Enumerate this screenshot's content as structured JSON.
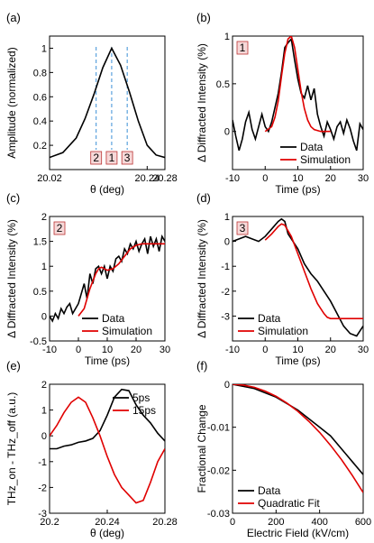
{
  "chart_data": [
    {
      "type": "line",
      "panel_label": "(a)",
      "xlabel": "θ (deg)",
      "ylabel": "Amplitude (normalized)",
      "xlim": [
        20.02,
        20.28
      ],
      "ylim": [
        0,
        1.1
      ],
      "xticks": [
        20.02,
        20.24,
        20.28
      ],
      "xtick_labels": [
        "20.02",
        "20.24",
        "20.28"
      ],
      "yticks": [
        0.2,
        0.4,
        0.6,
        0.8,
        1
      ],
      "ytick_labels": [
        "0.2",
        "0.4",
        "0.6",
        "0.8",
        "1"
      ],
      "series": [
        {
          "color": "#000000",
          "style": "solid",
          "x": [
            20.02,
            20.05,
            20.08,
            20.1,
            20.12,
            20.14,
            20.16,
            20.18,
            20.2,
            20.22,
            20.24,
            20.26,
            20.28
          ],
          "y": [
            0.1,
            0.14,
            0.26,
            0.42,
            0.62,
            0.84,
            1.0,
            0.86,
            0.64,
            0.4,
            0.2,
            0.12,
            0.1
          ]
        }
      ],
      "vlines": [
        {
          "x": 20.125,
          "label": "2"
        },
        {
          "x": 20.16,
          "label": "1"
        },
        {
          "x": 20.195,
          "label": "3"
        }
      ]
    },
    {
      "type": "line",
      "panel_label": "(b)",
      "inset_label": "1",
      "xlabel": "Time (ps)",
      "ylabel": "Δ Diffracted Intensity (%)",
      "xlim": [
        -10,
        30
      ],
      "ylim": [
        -0.4,
        1
      ],
      "xticks": [
        -10,
        0,
        10,
        20,
        30
      ],
      "yticks": [
        0,
        0.5,
        1
      ],
      "legend": [
        "Data",
        "Simulation"
      ],
      "legend_position": "bottom-right",
      "series": [
        {
          "name": "Data",
          "color": "#000000",
          "x": [
            -10,
            -9,
            -8,
            -7,
            -6,
            -5,
            -4,
            -3,
            -2,
            -1,
            0,
            1,
            2,
            3,
            4,
            5,
            6,
            7,
            8,
            9,
            10,
            11,
            12,
            13,
            14,
            15,
            16,
            17,
            18,
            19,
            20,
            21,
            22,
            23,
            24,
            25,
            26,
            27,
            28,
            29,
            30
          ],
          "y": [
            0.12,
            -0.05,
            -0.2,
            -0.08,
            0.1,
            0.2,
            0.02,
            -0.08,
            0.05,
            0.18,
            0.05,
            0.0,
            0.1,
            0.25,
            0.4,
            0.62,
            0.88,
            0.93,
            0.97,
            0.75,
            0.55,
            0.4,
            0.35,
            0.48,
            0.33,
            0.45,
            0.18,
            0.05,
            -0.05,
            0.1,
            0.02,
            -0.08,
            0.05,
            0.1,
            -0.02,
            0.12,
            0.03,
            -0.1,
            -0.2,
            0.08,
            0.02
          ]
        },
        {
          "name": "Simulation",
          "color": "#e00000",
          "x": [
            0,
            2,
            3,
            4,
            5,
            6,
            7,
            8,
            9,
            10,
            11,
            12,
            13,
            14,
            15,
            17,
            20
          ],
          "y": [
            0.0,
            0.05,
            0.15,
            0.32,
            0.58,
            0.82,
            0.97,
            1.0,
            0.88,
            0.65,
            0.42,
            0.24,
            0.12,
            0.05,
            0.02,
            0.0,
            0.0
          ]
        }
      ]
    },
    {
      "type": "line",
      "panel_label": "(c)",
      "inset_label": "2",
      "xlabel": "Time (ps)",
      "ylabel": "Δ Diffracted Intensity (%)",
      "xlim": [
        -10,
        30
      ],
      "ylim": [
        -0.5,
        2
      ],
      "xticks": [
        -10,
        0,
        10,
        20,
        30
      ],
      "yticks": [
        -0.5,
        0,
        0.5,
        1,
        1.5,
        2
      ],
      "legend": [
        "Data",
        "Simulation"
      ],
      "legend_position": "bottom-right",
      "series": [
        {
          "name": "Data",
          "color": "#000000",
          "x": [
            -10,
            -9,
            -8,
            -7,
            -6,
            -5,
            -4,
            -3,
            -2,
            -1,
            0,
            1,
            2,
            3,
            4,
            5,
            6,
            7,
            8,
            9,
            10,
            11,
            12,
            13,
            14,
            15,
            16,
            17,
            18,
            19,
            20,
            21,
            22,
            23,
            24,
            25,
            26,
            27,
            28,
            29,
            30
          ],
          "y": [
            0.0,
            -0.1,
            0.05,
            -0.05,
            0.15,
            0.05,
            0.18,
            0.25,
            0.05,
            0.15,
            0.25,
            0.45,
            0.65,
            0.35,
            0.85,
            0.65,
            0.95,
            1.0,
            0.85,
            1.0,
            0.75,
            1.0,
            0.9,
            1.15,
            1.2,
            1.1,
            1.35,
            1.25,
            1.45,
            1.35,
            1.5,
            1.3,
            1.45,
            1.55,
            1.25,
            1.6,
            1.4,
            1.55,
            1.3,
            1.6,
            1.5
          ]
        },
        {
          "name": "Simulation",
          "color": "#e00000",
          "x": [
            0,
            2,
            4,
            6,
            7,
            8,
            9,
            10,
            12,
            14,
            16,
            18,
            20,
            22,
            24,
            26,
            28,
            30
          ],
          "y": [
            0.0,
            0.15,
            0.55,
            0.85,
            0.95,
            0.98,
            0.95,
            0.92,
            0.95,
            1.05,
            1.2,
            1.35,
            1.42,
            1.45,
            1.45,
            1.45,
            1.45,
            1.45
          ]
        }
      ]
    },
    {
      "type": "line",
      "panel_label": "(d)",
      "inset_label": "3",
      "xlabel": "Time (ps)",
      "ylabel": "Δ Diffracted Intensity (%)",
      "xlim": [
        -10,
        30
      ],
      "ylim": [
        -4,
        1
      ],
      "xticks": [
        -10,
        0,
        10,
        20,
        30
      ],
      "yticks": [
        -3,
        -2,
        -1,
        0,
        1
      ],
      "legend": [
        "Data",
        "Simulation"
      ],
      "legend_position": "bottom-left",
      "series": [
        {
          "name": "Data",
          "color": "#000000",
          "x": [
            -10,
            -8,
            -6,
            -4,
            -2,
            0,
            2,
            4,
            5,
            6,
            7,
            8,
            10,
            12,
            14,
            16,
            18,
            20,
            22,
            24,
            26,
            28,
            30
          ],
          "y": [
            0.0,
            0.1,
            0.2,
            0.1,
            0.0,
            0.2,
            0.5,
            0.8,
            0.9,
            0.8,
            0.3,
            0.1,
            -0.3,
            -0.9,
            -1.3,
            -1.6,
            -2.0,
            -2.4,
            -2.9,
            -3.4,
            -3.7,
            -3.8,
            -3.4
          ]
        },
        {
          "name": "Simulation",
          "color": "#e00000",
          "x": [
            0,
            2,
            4,
            5,
            6,
            8,
            10,
            12,
            14,
            16,
            18,
            19,
            20,
            22,
            25,
            28,
            30
          ],
          "y": [
            0.05,
            0.3,
            0.6,
            0.7,
            0.65,
            0.2,
            -0.5,
            -1.2,
            -1.9,
            -2.5,
            -2.9,
            -3.05,
            -3.1,
            -3.1,
            -3.1,
            -3.1,
            -3.1
          ]
        }
      ]
    },
    {
      "type": "line",
      "panel_label": "(e)",
      "xlabel": "θ (deg)",
      "ylabel": "THz_on - THz_off (a.u.)",
      "xlim": [
        20.2,
        20.28
      ],
      "ylim": [
        -3,
        2
      ],
      "xticks": [
        20.2,
        20.24,
        20.28
      ],
      "xtick_labels": [
        "20.2",
        "20.24",
        "20.28"
      ],
      "yticks": [
        -3,
        -2,
        -1,
        0,
        1,
        2
      ],
      "legend": [
        "5ps",
        "15ps"
      ],
      "legend_position": "top-right",
      "series": [
        {
          "name": "5ps",
          "color": "#000000",
          "x": [
            20.2,
            20.205,
            20.21,
            20.215,
            20.22,
            20.225,
            20.23,
            20.235,
            20.24,
            20.245,
            20.25,
            20.255,
            20.26,
            20.265,
            20.27,
            20.275,
            20.28
          ],
          "y": [
            -0.5,
            -0.5,
            -0.4,
            -0.35,
            -0.25,
            -0.2,
            -0.1,
            0.2,
            0.8,
            1.5,
            1.8,
            1.75,
            1.2,
            0.8,
            0.5,
            0.1,
            -0.2
          ]
        },
        {
          "name": "15ps",
          "color": "#e00000",
          "x": [
            20.2,
            20.205,
            20.21,
            20.215,
            20.22,
            20.225,
            20.23,
            20.235,
            20.24,
            20.245,
            20.25,
            20.255,
            20.26,
            20.265,
            20.27,
            20.275,
            20.28
          ],
          "y": [
            0.0,
            0.4,
            0.9,
            1.3,
            1.5,
            1.3,
            0.7,
            0.0,
            -0.8,
            -1.5,
            -2.0,
            -2.3,
            -2.6,
            -2.5,
            -1.8,
            -1.0,
            -0.5
          ]
        }
      ]
    },
    {
      "type": "line",
      "panel_label": "(f)",
      "xlabel": "Electric Field (kV/cm)",
      "ylabel": "Fractional Change",
      "xlim": [
        0,
        600
      ],
      "ylim": [
        -0.03,
        0
      ],
      "xticks": [
        0,
        200,
        400,
        600
      ],
      "yticks": [
        -0.03,
        -0.02,
        -0.01,
        0
      ],
      "legend": [
        "Data",
        "Quadratic Fit"
      ],
      "legend_position": "bottom-left",
      "series": [
        {
          "name": "Data",
          "color": "#000000",
          "x": [
            0,
            50,
            100,
            150,
            200,
            250,
            300,
            350,
            400,
            450,
            500,
            550,
            600
          ],
          "y": [
            0.0,
            -0.0005,
            -0.001,
            -0.002,
            -0.003,
            -0.0045,
            -0.006,
            -0.008,
            -0.01,
            -0.012,
            -0.015,
            -0.018,
            -0.021
          ]
        },
        {
          "name": "Quadratic Fit",
          "color": "#e00000",
          "x": [
            0,
            50,
            100,
            150,
            200,
            250,
            300,
            350,
            400,
            450,
            500,
            550,
            600
          ],
          "y": [
            0.0,
            -0.0002,
            -0.0007,
            -0.0016,
            -0.0028,
            -0.0044,
            -0.0063,
            -0.0086,
            -0.0112,
            -0.0142,
            -0.0175,
            -0.0212,
            -0.0252
          ]
        }
      ]
    }
  ]
}
